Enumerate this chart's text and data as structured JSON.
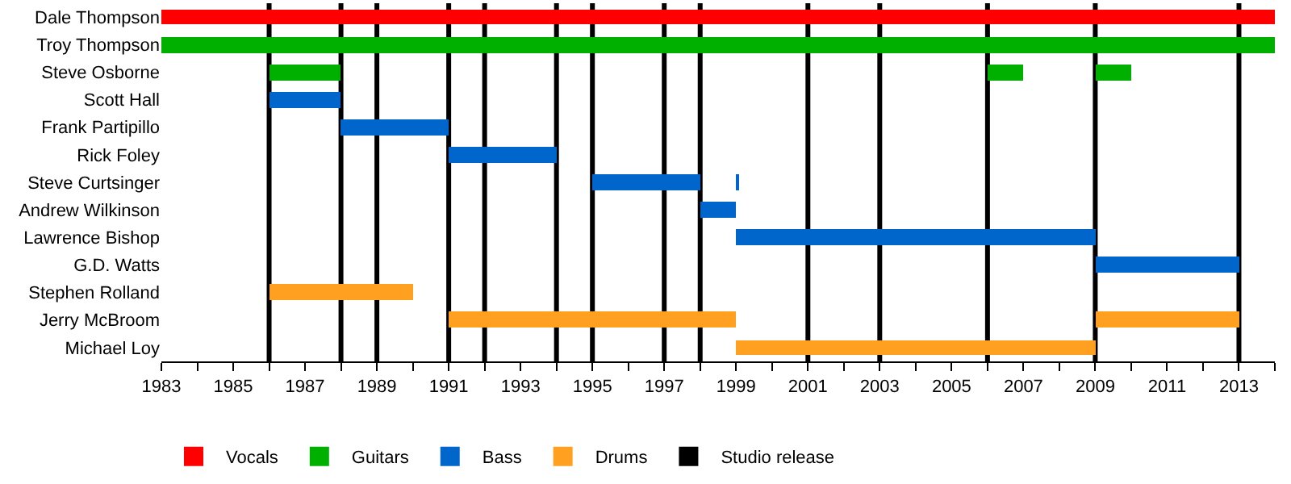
{
  "chart_data": {
    "type": "bar",
    "orientation": "horizontal",
    "categories": [
      "Dale Thompson",
      "Troy Thompson",
      "Steve Osborne",
      "Scott Hall",
      "Frank Partipillo",
      "Rick Foley",
      "Steve Curtsinger",
      "Andrew Wilkinson",
      "Lawrence Bishop",
      "G.D. Watts",
      "Stephen Rolland",
      "Jerry McBroom",
      "Michael Loy"
    ],
    "series": [
      {
        "name": "Vocals",
        "color": "#ff0000",
        "values": [
          31,
          null,
          null,
          null,
          null,
          null,
          null,
          null,
          null,
          null,
          null,
          null,
          null
        ],
        "base": [
          1983,
          null,
          null,
          null,
          null,
          null,
          null,
          null,
          null,
          null,
          null,
          null,
          null
        ]
      },
      {
        "name": "Guitars",
        "color": "#00b000",
        "values": [
          null,
          31,
          2,
          null,
          null,
          null,
          null,
          null,
          null,
          null,
          null,
          null,
          null
        ],
        "base": [
          null,
          1983,
          1986,
          null,
          null,
          null,
          null,
          null,
          null,
          null,
          null,
          null,
          null
        ]
      },
      {
        "color": "#00b000",
        "values": [
          null,
          null,
          1,
          null,
          null,
          null,
          null,
          null,
          null,
          null,
          null,
          null,
          null
        ],
        "base": [
          null,
          null,
          2006,
          null,
          null,
          null,
          null,
          null,
          null,
          null,
          null,
          null,
          null
        ]
      },
      {
        "color": "#00b000",
        "values": [
          null,
          null,
          1,
          null,
          null,
          null,
          null,
          null,
          null,
          null,
          null,
          null,
          null
        ],
        "base": [
          null,
          null,
          2009,
          null,
          null,
          null,
          null,
          null,
          null,
          null,
          null,
          null,
          null
        ]
      },
      {
        "name": "Bass",
        "color": "#0066cc",
        "values": [
          null,
          null,
          null,
          2,
          3,
          3,
          3,
          1,
          10,
          4,
          null,
          null,
          null
        ],
        "base": [
          null,
          null,
          null,
          1986,
          1988,
          1991,
          1995,
          1998,
          1999,
          2009,
          null,
          null,
          null
        ]
      },
      {
        "color": "#0066cc",
        "values": [
          null,
          null,
          null,
          null,
          null,
          null,
          0.05,
          null,
          null,
          null,
          null,
          null,
          null
        ],
        "base": [
          null,
          null,
          null,
          null,
          null,
          null,
          1999,
          null,
          null,
          null,
          null,
          null,
          null
        ]
      },
      {
        "name": "Drums",
        "color": "#ffa020",
        "values": [
          null,
          null,
          null,
          null,
          null,
          null,
          null,
          null,
          null,
          null,
          4,
          8,
          10
        ],
        "base": [
          null,
          null,
          null,
          null,
          null,
          null,
          null,
          null,
          null,
          null,
          1986,
          1991,
          1999
        ]
      },
      {
        "color": "#ffa020",
        "values": [
          null,
          null,
          null,
          null,
          null,
          null,
          null,
          null,
          null,
          null,
          null,
          4,
          null
        ],
        "base": [
          null,
          null,
          null,
          null,
          null,
          null,
          null,
          null,
          null,
          null,
          null,
          2009,
          null
        ]
      }
    ],
    "ref_lines": [
      {
        "axis": "x",
        "value": 1986,
        "label": "Studio release",
        "color": "#000000"
      },
      {
        "axis": "x",
        "value": 1988,
        "color": "#000000"
      },
      {
        "axis": "x",
        "value": 1989,
        "color": "#000000"
      },
      {
        "axis": "x",
        "value": 1991,
        "color": "#000000"
      },
      {
        "axis": "x",
        "value": 1992,
        "color": "#000000"
      },
      {
        "axis": "x",
        "value": 1994,
        "color": "#000000"
      },
      {
        "axis": "x",
        "value": 1995,
        "color": "#000000"
      },
      {
        "axis": "x",
        "value": 1997,
        "color": "#000000"
      },
      {
        "axis": "x",
        "value": 1998,
        "color": "#000000"
      },
      {
        "axis": "x",
        "value": 2001,
        "color": "#000000"
      },
      {
        "axis": "x",
        "value": 2003,
        "color": "#000000"
      },
      {
        "axis": "x",
        "value": 2006,
        "color": "#000000"
      },
      {
        "axis": "x",
        "value": 2009,
        "color": "#000000"
      },
      {
        "axis": "x",
        "value": 2013,
        "color": "#000000"
      }
    ],
    "xlim": [
      1983,
      2014
    ],
    "xticks": [
      1983,
      {
        "value": 1984,
        "label": null
      },
      1985,
      {
        "value": 1986,
        "label": null
      },
      1987,
      {
        "value": 1988,
        "label": null
      },
      1989,
      {
        "value": 1990,
        "label": null
      },
      1991,
      {
        "value": 1992,
        "label": null
      },
      1993,
      {
        "value": 1994,
        "label": null
      },
      1995,
      {
        "value": 1996,
        "label": null
      },
      1997,
      {
        "value": 1998,
        "label": null
      },
      1999,
      {
        "value": 2000,
        "label": null
      },
      2001,
      {
        "value": 2002,
        "label": null
      },
      2003,
      {
        "value": 2004,
        "label": null
      },
      2005,
      {
        "value": 2006,
        "label": null
      },
      2007,
      {
        "value": 2008,
        "label": null
      },
      2009,
      {
        "value": 2010,
        "label": null
      },
      2011,
      {
        "value": 2012,
        "label": null
      },
      2013,
      {
        "value": 2014,
        "label": null
      }
    ],
    "grid": false,
    "legend": "bottom"
  }
}
